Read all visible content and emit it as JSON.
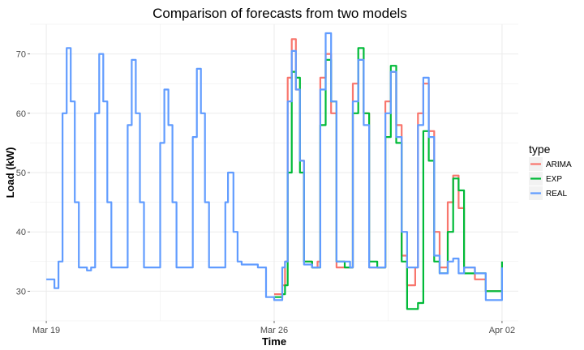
{
  "chart_data": {
    "type": "line",
    "title": "Comparison of forecasts from two models",
    "xlabel": "Time",
    "ylabel": "Load (kW)",
    "x_ticks": [
      "Mar 19",
      "Mar 26",
      "Apr 02"
    ],
    "y_ticks": [
      "30",
      "40",
      "50",
      "60",
      "70"
    ],
    "xlim": [
      "2017-03-18 12:00",
      "2017-04-02 12:00"
    ],
    "ylim": [
      25,
      75
    ],
    "grid": true,
    "legend_position": "right",
    "legend_title": "type",
    "series": [
      {
        "name": "ARIMA",
        "color": "#f8766d",
        "points": [
          [
            "2017-03-26 00:00",
            29.5
          ],
          [
            "2017-03-26 06:00",
            31
          ],
          [
            "2017-03-26 08:00",
            35
          ],
          [
            "2017-03-26 10:00",
            66
          ],
          [
            "2017-03-26 13:00",
            72.5
          ],
          [
            "2017-03-26 16:00",
            64
          ],
          [
            "2017-03-26 19:00",
            52
          ],
          [
            "2017-03-26 22:00",
            35
          ],
          [
            "2017-03-27 04:00",
            34
          ],
          [
            "2017-03-27 08:00",
            35
          ],
          [
            "2017-03-27 10:00",
            66
          ],
          [
            "2017-03-27 14:00",
            70
          ],
          [
            "2017-03-27 18:00",
            60
          ],
          [
            "2017-03-27 22:00",
            34
          ],
          [
            "2017-03-28 04:00",
            34
          ],
          [
            "2017-03-28 08:00",
            34
          ],
          [
            "2017-03-28 10:00",
            65
          ],
          [
            "2017-03-28 14:00",
            69
          ],
          [
            "2017-03-28 18:00",
            60
          ],
          [
            "2017-03-28 22:00",
            34
          ],
          [
            "2017-03-29 04:00",
            34
          ],
          [
            "2017-03-29 08:00",
            34
          ],
          [
            "2017-03-29 10:00",
            62
          ],
          [
            "2017-03-29 14:00",
            67
          ],
          [
            "2017-03-29 18:00",
            58
          ],
          [
            "2017-03-29 22:00",
            36
          ],
          [
            "2017-03-30 02:00",
            31
          ],
          [
            "2017-03-30 08:00",
            34
          ],
          [
            "2017-03-30 10:00",
            60
          ],
          [
            "2017-03-30 14:00",
            65
          ],
          [
            "2017-03-30 18:00",
            57
          ],
          [
            "2017-03-30 22:00",
            40
          ],
          [
            "2017-03-31 02:00",
            34
          ],
          [
            "2017-03-31 08:00",
            45
          ],
          [
            "2017-03-31 12:00",
            49.5
          ],
          [
            "2017-03-31 16:00",
            44
          ],
          [
            "2017-03-31 20:00",
            34
          ],
          [
            "2017-04-01 04:00",
            32
          ],
          [
            "2017-04-01 12:00",
            30
          ],
          [
            "2017-04-02 00:00",
            29
          ]
        ]
      },
      {
        "name": "EXP",
        "color": "#00ba38",
        "points": [
          [
            "2017-03-26 00:00",
            29
          ],
          [
            "2017-03-26 06:00",
            29.5
          ],
          [
            "2017-03-26 08:00",
            31
          ],
          [
            "2017-03-26 10:00",
            50
          ],
          [
            "2017-03-26 13:00",
            67
          ],
          [
            "2017-03-26 16:00",
            66
          ],
          [
            "2017-03-26 19:00",
            50
          ],
          [
            "2017-03-26 22:00",
            35
          ],
          [
            "2017-03-27 04:00",
            34
          ],
          [
            "2017-03-27 08:00",
            34
          ],
          [
            "2017-03-27 10:00",
            58
          ],
          [
            "2017-03-27 14:00",
            69
          ],
          [
            "2017-03-27 18:00",
            62
          ],
          [
            "2017-03-27 22:00",
            35
          ],
          [
            "2017-03-28 04:00",
            34
          ],
          [
            "2017-03-28 08:00",
            34
          ],
          [
            "2017-03-28 10:00",
            60
          ],
          [
            "2017-03-28 14:00",
            71
          ],
          [
            "2017-03-28 18:00",
            60
          ],
          [
            "2017-03-28 22:00",
            35
          ],
          [
            "2017-03-29 04:00",
            34
          ],
          [
            "2017-03-29 08:00",
            34
          ],
          [
            "2017-03-29 10:00",
            56
          ],
          [
            "2017-03-29 14:00",
            68
          ],
          [
            "2017-03-29 18:00",
            55
          ],
          [
            "2017-03-29 22:00",
            35
          ],
          [
            "2017-03-30 02:00",
            27
          ],
          [
            "2017-03-30 08:00",
            27
          ],
          [
            "2017-03-30 10:00",
            28
          ],
          [
            "2017-03-30 14:00",
            57
          ],
          [
            "2017-03-30 18:00",
            52
          ],
          [
            "2017-03-30 22:00",
            35
          ],
          [
            "2017-03-31 02:00",
            33
          ],
          [
            "2017-03-31 08:00",
            40
          ],
          [
            "2017-03-31 12:00",
            49
          ],
          [
            "2017-03-31 16:00",
            47
          ],
          [
            "2017-03-31 20:00",
            33
          ],
          [
            "2017-04-01 04:00",
            33
          ],
          [
            "2017-04-01 12:00",
            30
          ],
          [
            "2017-04-02 00:00",
            35
          ]
        ]
      },
      {
        "name": "REAL",
        "color": "#619cff",
        "points": [
          [
            "2017-03-19 00:00",
            32
          ],
          [
            "2017-03-19 06:00",
            30.5
          ],
          [
            "2017-03-19 09:00",
            35
          ],
          [
            "2017-03-19 12:00",
            60
          ],
          [
            "2017-03-19 15:00",
            71
          ],
          [
            "2017-03-19 18:00",
            62
          ],
          [
            "2017-03-19 21:00",
            45
          ],
          [
            "2017-03-20 00:00",
            34
          ],
          [
            "2017-03-20 06:00",
            33.5
          ],
          [
            "2017-03-20 09:00",
            34
          ],
          [
            "2017-03-20 12:00",
            60
          ],
          [
            "2017-03-20 15:00",
            70
          ],
          [
            "2017-03-20 18:00",
            62
          ],
          [
            "2017-03-20 21:00",
            45
          ],
          [
            "2017-03-21 00:00",
            34
          ],
          [
            "2017-03-21 06:00",
            34
          ],
          [
            "2017-03-21 09:00",
            34
          ],
          [
            "2017-03-21 12:00",
            58
          ],
          [
            "2017-03-21 15:00",
            69
          ],
          [
            "2017-03-21 18:00",
            60
          ],
          [
            "2017-03-21 21:00",
            45
          ],
          [
            "2017-03-22 00:00",
            34
          ],
          [
            "2017-03-22 06:00",
            34
          ],
          [
            "2017-03-22 09:00",
            34
          ],
          [
            "2017-03-22 12:00",
            55
          ],
          [
            "2017-03-22 15:00",
            64
          ],
          [
            "2017-03-22 18:00",
            58
          ],
          [
            "2017-03-22 21:00",
            45
          ],
          [
            "2017-03-23 00:00",
            34
          ],
          [
            "2017-03-23 06:00",
            34
          ],
          [
            "2017-03-23 09:00",
            34
          ],
          [
            "2017-03-23 12:00",
            56
          ],
          [
            "2017-03-23 15:00",
            67.5
          ],
          [
            "2017-03-23 18:00",
            60
          ],
          [
            "2017-03-23 21:00",
            45
          ],
          [
            "2017-03-24 00:00",
            34
          ],
          [
            "2017-03-24 06:00",
            34
          ],
          [
            "2017-03-24 09:00",
            34
          ],
          [
            "2017-03-24 12:00",
            45
          ],
          [
            "2017-03-24 14:00",
            50
          ],
          [
            "2017-03-24 18:00",
            40
          ],
          [
            "2017-03-24 21:00",
            35
          ],
          [
            "2017-03-25 00:00",
            34.5
          ],
          [
            "2017-03-25 06:00",
            34.5
          ],
          [
            "2017-03-25 12:00",
            34
          ],
          [
            "2017-03-25 18:00",
            29
          ],
          [
            "2017-03-26 00:00",
            28.5
          ],
          [
            "2017-03-26 06:00",
            34
          ],
          [
            "2017-03-26 08:00",
            35
          ],
          [
            "2017-03-26 10:00",
            62
          ],
          [
            "2017-03-26 13:00",
            70.5
          ],
          [
            "2017-03-26 16:00",
            64
          ],
          [
            "2017-03-26 19:00",
            52
          ],
          [
            "2017-03-26 22:00",
            34.5
          ],
          [
            "2017-03-27 04:00",
            34
          ],
          [
            "2017-03-27 08:00",
            34
          ],
          [
            "2017-03-27 10:00",
            64
          ],
          [
            "2017-03-27 14:00",
            73.5
          ],
          [
            "2017-03-27 18:00",
            62
          ],
          [
            "2017-03-27 22:00",
            35
          ],
          [
            "2017-03-28 04:00",
            35
          ],
          [
            "2017-03-28 08:00",
            34
          ],
          [
            "2017-03-28 10:00",
            62
          ],
          [
            "2017-03-28 14:00",
            69
          ],
          [
            "2017-03-28 18:00",
            58
          ],
          [
            "2017-03-28 22:00",
            34
          ],
          [
            "2017-03-29 04:00",
            34
          ],
          [
            "2017-03-29 08:00",
            34
          ],
          [
            "2017-03-29 10:00",
            60
          ],
          [
            "2017-03-29 14:00",
            67
          ],
          [
            "2017-03-29 18:00",
            56
          ],
          [
            "2017-03-29 22:00",
            40
          ],
          [
            "2017-03-30 02:00",
            34
          ],
          [
            "2017-03-30 08:00",
            34
          ],
          [
            "2017-03-30 10:00",
            58
          ],
          [
            "2017-03-30 14:00",
            66
          ],
          [
            "2017-03-30 18:00",
            56
          ],
          [
            "2017-03-30 22:00",
            36
          ],
          [
            "2017-03-31 02:00",
            33
          ],
          [
            "2017-03-31 08:00",
            35
          ],
          [
            "2017-03-31 12:00",
            35.5
          ],
          [
            "2017-03-31 16:00",
            33
          ],
          [
            "2017-03-31 20:00",
            34
          ],
          [
            "2017-04-01 04:00",
            33
          ],
          [
            "2017-04-01 12:00",
            28.5
          ],
          [
            "2017-04-02 00:00",
            34
          ]
        ]
      }
    ]
  }
}
